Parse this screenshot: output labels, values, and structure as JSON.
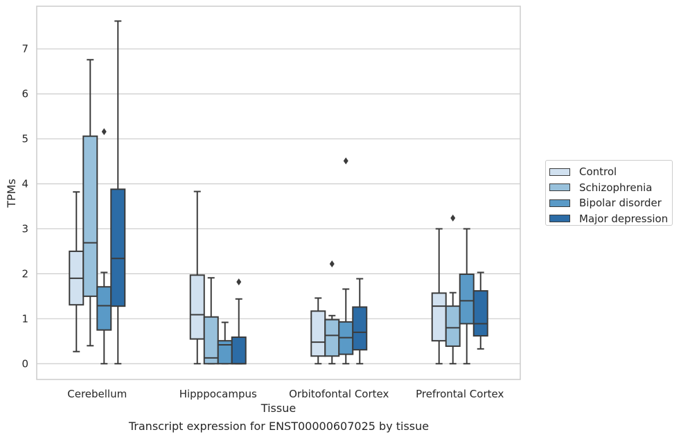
{
  "chart_data": {
    "type": "boxplot",
    "title": "",
    "caption": "Transcript expression for ENST00000607025 by tissue",
    "xlabel": "Tissue",
    "ylabel": "TPMs",
    "ylim": [
      -0.35,
      7.95
    ],
    "yticks": [
      0,
      1,
      2,
      3,
      4,
      5,
      6,
      7
    ],
    "grid": true,
    "legend_position": "right",
    "categories": [
      "Cerebellum",
      "Hipppocampus",
      "Orbitofontal Cortex",
      "Prefrontal Cortex"
    ],
    "series": [
      {
        "name": "Control",
        "color": "#d1e1f0",
        "boxes": [
          {
            "whislo": 0.27,
            "q1": 1.31,
            "med": 1.9,
            "q3": 2.5,
            "whishi": 3.82,
            "fliers": []
          },
          {
            "whislo": 0.0,
            "q1": 0.55,
            "med": 1.09,
            "q3": 1.97,
            "whishi": 3.83,
            "fliers": []
          },
          {
            "whislo": 0.0,
            "q1": 0.17,
            "med": 0.48,
            "q3": 1.17,
            "whishi": 1.46,
            "fliers": []
          },
          {
            "whislo": 0.0,
            "q1": 0.51,
            "med": 1.28,
            "q3": 1.57,
            "whishi": 3.0,
            "fliers": []
          }
        ]
      },
      {
        "name": "Schizophrenia",
        "color": "#98c1dc",
        "boxes": [
          {
            "whislo": 0.4,
            "q1": 1.5,
            "med": 2.69,
            "q3": 5.06,
            "whishi": 6.76,
            "fliers": []
          },
          {
            "whislo": 0.0,
            "q1": 0.0,
            "med": 0.13,
            "q3": 1.04,
            "whishi": 1.91,
            "fliers": []
          },
          {
            "whislo": 0.0,
            "q1": 0.17,
            "med": 0.63,
            "q3": 0.98,
            "whishi": 1.07,
            "fliers": [
              2.22
            ]
          },
          {
            "whislo": 0.0,
            "q1": 0.39,
            "med": 0.8,
            "q3": 1.28,
            "whishi": 1.58,
            "fliers": [
              3.24
            ]
          }
        ]
      },
      {
        "name": "Bipolar disorder",
        "color": "#5a9ac7",
        "boxes": [
          {
            "whislo": 0.0,
            "q1": 0.75,
            "med": 1.29,
            "q3": 1.71,
            "whishi": 2.03,
            "fliers": [
              5.16
            ]
          },
          {
            "whislo": 0.0,
            "q1": 0.0,
            "med": 0.42,
            "q3": 0.51,
            "whishi": 0.92,
            "fliers": []
          },
          {
            "whislo": 0.0,
            "q1": 0.21,
            "med": 0.58,
            "q3": 0.93,
            "whishi": 1.66,
            "fliers": [
              4.51
            ]
          },
          {
            "whislo": 0.0,
            "q1": 0.89,
            "med": 1.4,
            "q3": 1.99,
            "whishi": 3.0,
            "fliers": []
          }
        ]
      },
      {
        "name": "Major depression",
        "color": "#2c6ca6",
        "boxes": [
          {
            "whislo": 0.0,
            "q1": 1.28,
            "med": 2.34,
            "q3": 3.88,
            "whishi": 7.62,
            "fliers": []
          },
          {
            "whislo": 0.0,
            "q1": 0.0,
            "med": 0.0,
            "q3": 0.59,
            "whishi": 1.44,
            "fliers": [
              1.82
            ]
          },
          {
            "whislo": 0.0,
            "q1": 0.31,
            "med": 0.7,
            "q3": 1.26,
            "whishi": 1.89,
            "fliers": []
          },
          {
            "whislo": 0.33,
            "q1": 0.62,
            "med": 0.89,
            "q3": 1.62,
            "whishi": 2.03,
            "fliers": []
          }
        ]
      }
    ]
  }
}
